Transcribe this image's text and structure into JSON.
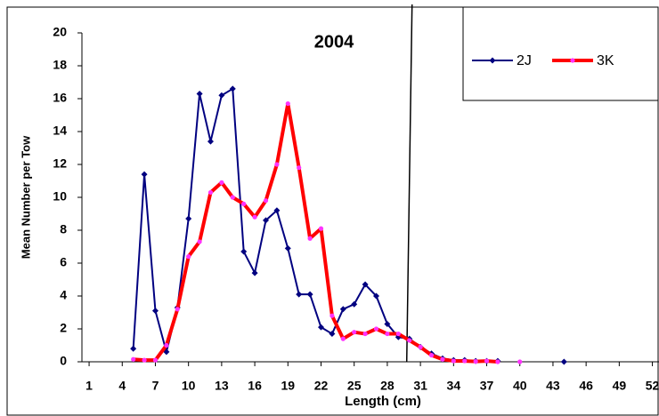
{
  "chart_data": {
    "type": "line",
    "title": "2004",
    "x_label": "Length (cm)",
    "y_label": "Mean Number per Tow",
    "x": [
      5,
      6,
      7,
      8,
      9,
      10,
      11,
      12,
      13,
      14,
      15,
      16,
      17,
      18,
      19,
      20,
      21,
      22,
      23,
      24,
      25,
      26,
      27,
      28,
      29,
      30,
      31,
      32,
      33,
      34,
      35,
      36,
      37,
      38,
      39,
      40,
      41,
      42,
      43,
      44
    ],
    "series": [
      {
        "name": "2J",
        "color": "#000080",
        "marker_color": "#000080",
        "marker": "diamond",
        "values": [
          0.8,
          11.4,
          3.1,
          0.6,
          3.3,
          8.7,
          16.3,
          13.4,
          16.2,
          16.6,
          6.7,
          5.4,
          8.6,
          9.2,
          6.9,
          4.1,
          4.1,
          2.1,
          1.7,
          3.2,
          3.5,
          4.7,
          4.0,
          2.3,
          1.5,
          1.4,
          0.9,
          0.5,
          0.2,
          0.1,
          0.1,
          0.05,
          0.05,
          0.05,
          null,
          null,
          null,
          null,
          null,
          0
        ]
      },
      {
        "name": "3K",
        "color": "#ff0000",
        "marker_color": "#ff33ff",
        "marker": "circle",
        "values": [
          0.15,
          0.1,
          0.1,
          1.0,
          3.2,
          6.4,
          7.3,
          10.3,
          10.9,
          10.0,
          9.6,
          8.8,
          9.8,
          12.0,
          15.7,
          11.8,
          7.5,
          8.1,
          2.8,
          1.4,
          1.8,
          1.7,
          2.0,
          1.7,
          1.7,
          1.3,
          0.9,
          0.4,
          0.15,
          0.05,
          0.05,
          0.02,
          0.05,
          0,
          null,
          0,
          null,
          null,
          null,
          null
        ]
      }
    ],
    "xlim": [
      0.35,
      52.6
    ],
    "xticks": [
      1,
      4,
      7,
      10,
      13,
      16,
      19,
      22,
      25,
      28,
      31,
      34,
      37,
      40,
      43,
      46,
      49,
      52
    ],
    "ylim": [
      0,
      20
    ],
    "yticks": [
      0,
      2,
      4,
      6,
      8,
      10,
      12,
      14,
      16,
      18,
      20
    ],
    "vline": 30,
    "grid": false,
    "legend": "top-right"
  }
}
